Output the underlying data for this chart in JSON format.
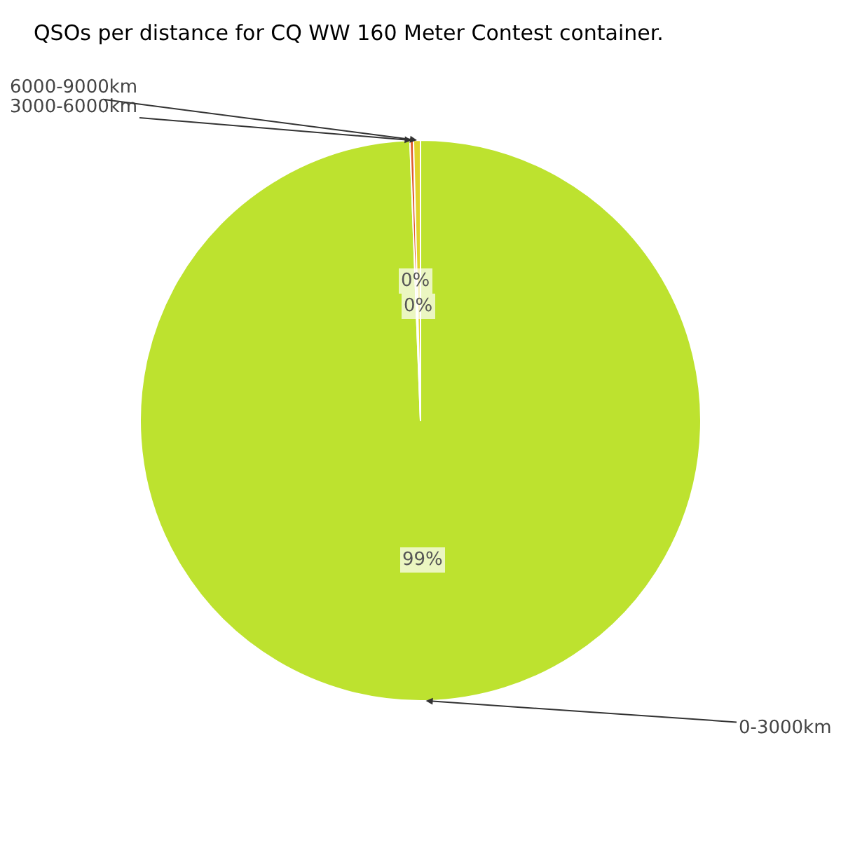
{
  "chart_data": {
    "type": "pie",
    "title": "QSOs per distance for CQ WW 160 Meter Contest container.",
    "categories": [
      "0-3000km",
      "3000-6000km",
      "6000-9000km"
    ],
    "values": [
      99.4,
      0.2,
      0.4
    ],
    "colors": [
      "#bde22f",
      "#e05a2b",
      "#e0d42a"
    ],
    "value_labels": [
      "99%",
      "0%",
      "0%"
    ],
    "legend": false
  }
}
